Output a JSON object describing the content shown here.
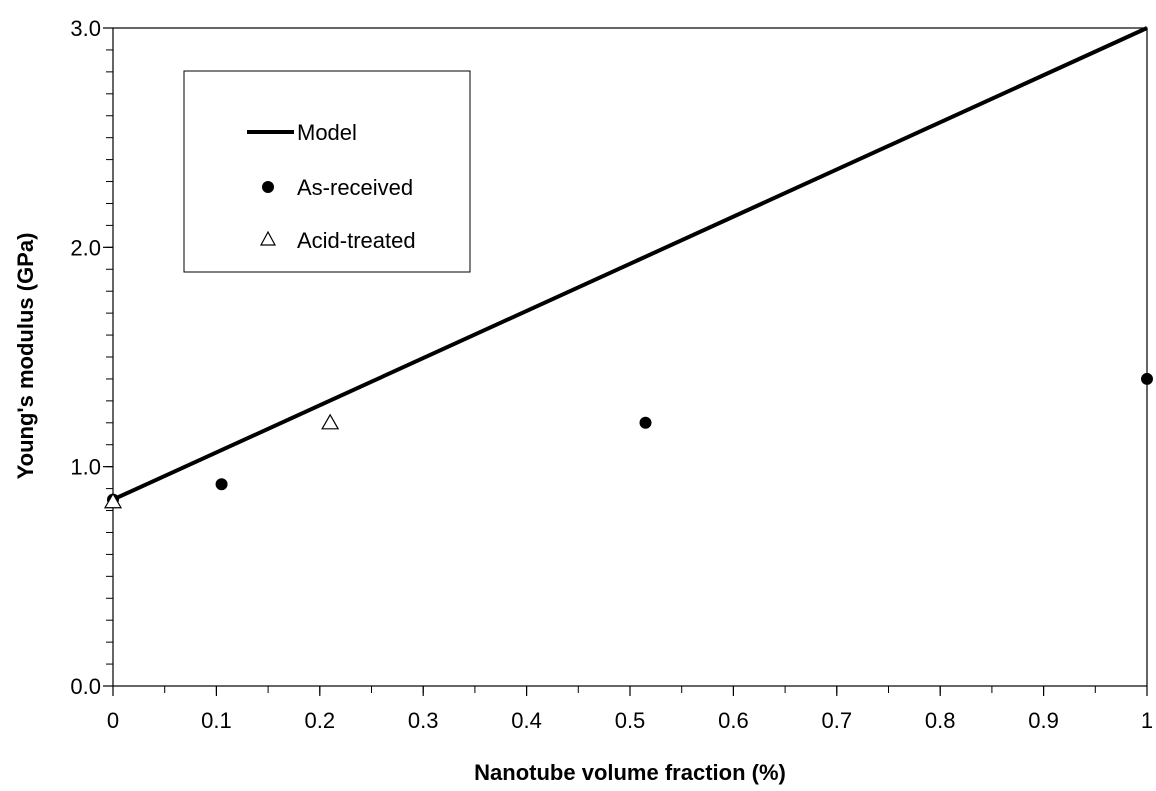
{
  "chart_data": {
    "type": "scatter",
    "xlabel": "Nanotube volume fraction (%)",
    "ylabel": "Young's modulus (GPa)",
    "xlim": [
      0,
      1
    ],
    "ylim": [
      0,
      3
    ],
    "x_ticks": [
      0,
      0.1,
      0.2,
      0.3,
      0.4,
      0.5,
      0.6,
      0.7,
      0.8,
      0.9,
      1
    ],
    "x_tick_labels": [
      "0",
      "0.1",
      "0.2",
      "0.3",
      "0.4",
      "0.5",
      "0.6",
      "0.7",
      "0.8",
      "0.9",
      "1"
    ],
    "x_minor_step": 0.05,
    "y_ticks": [
      0,
      1,
      2,
      3
    ],
    "y_tick_labels": [
      "0.0",
      "1.0",
      "2.0",
      "3.0"
    ],
    "y_minor_step": 0.1,
    "grid": false,
    "legend_position": "top-left",
    "series": [
      {
        "name": "Model",
        "kind": "line",
        "marker": "none",
        "color": "#000000",
        "x": [
          0,
          1
        ],
        "y": [
          0.85,
          3.0
        ]
      },
      {
        "name": "As-received",
        "kind": "scatter",
        "marker": "filled-circle",
        "color": "#000000",
        "x": [
          0,
          0.105,
          0.515,
          1.0
        ],
        "y": [
          0.85,
          0.92,
          1.2,
          1.4
        ]
      },
      {
        "name": "Acid-treated",
        "kind": "scatter",
        "marker": "open-triangle",
        "color": "#000000",
        "x": [
          0,
          0.21
        ],
        "y": [
          0.84,
          1.2
        ]
      }
    ]
  }
}
